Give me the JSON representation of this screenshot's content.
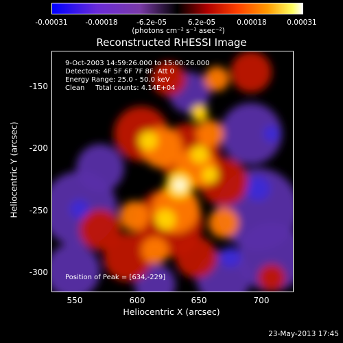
{
  "chart_data": {
    "type": "heatmap",
    "title": "Reconstructed RHESSI Image",
    "xlabel": "Heliocentric X (arcsec)",
    "ylabel": "Heliocentric Y (arcsec)",
    "xlim": [
      533,
      726
    ],
    "ylim": [
      -315,
      -122
    ],
    "x_ticks": [
      "550",
      "600",
      "650",
      "700"
    ],
    "y_ticks": [
      "-150",
      "-200",
      "-250",
      "-300"
    ],
    "colorbar": {
      "ticks": [
        "-0.00031",
        "-0.00018",
        "-6.2e-05",
        "6.2e-05",
        "0.00018",
        "0.00031"
      ],
      "units": "(photons cm⁻² s⁻¹ asec⁻²)"
    },
    "info": {
      "time": "9-Oct-2003 14:59:26.000 to 15:00:26.000",
      "detectors": "Detectors: 4F 5F 6F 7F 8F, Att 0",
      "energy": "Energy Range: 25.0 - 50.0 keV",
      "method": "Clean     Total counts: 4.14E+04",
      "peak": "Position of Peak = [634,-229]"
    },
    "peak": [
      634,
      -229
    ]
  },
  "timestamp": "23-May-2013 17:45",
  "colors": {
    "background": "#000000",
    "foreground": "#ffffff"
  }
}
